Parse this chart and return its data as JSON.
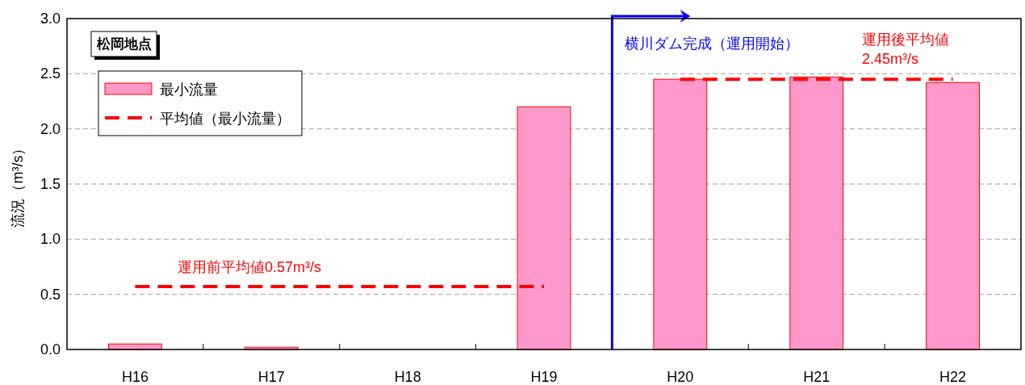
{
  "chart_data": {
    "type": "bar",
    "categories": [
      "H16",
      "H17",
      "H18",
      "H19",
      "H20",
      "H21",
      "H22"
    ],
    "series": [
      {
        "name": "最小流量",
        "color": "#ff99cc",
        "values": [
          0.05,
          0.02,
          0,
          2.2,
          2.45,
          2.47,
          2.42
        ]
      },
      {
        "name": "平均値（最小流量）",
        "type": "line",
        "color": "#ff0000",
        "values": [
          0.57,
          0.57,
          0.57,
          0.57,
          null,
          null,
          null
        ]
      },
      {
        "type": "line",
        "color": "#ff0000",
        "values": [
          null,
          null,
          null,
          null,
          2.45,
          2.45,
          2.45
        ]
      }
    ],
    "ylabel": "流況（m³/s）",
    "ylim": [
      0,
      3.0
    ],
    "yticks": [
      {
        "value": 0,
        "label": "0.0"
      },
      {
        "value": 0.5,
        "label": "0.5"
      },
      {
        "value": 1.0,
        "label": "1.0"
      },
      {
        "value": 1.5,
        "label": "1.5"
      },
      {
        "value": 2.0,
        "label": "2.0"
      },
      {
        "value": 2.5,
        "label": "2.5"
      },
      {
        "value": 3.0,
        "label": "3.0"
      }
    ],
    "annotations": [
      "松岡地点",
      "横川ダム完成（運用開始）",
      "運用前平均値0.57m³/s",
      "運用後平均値\n2.45m³/s"
    ],
    "grid": "y",
    "legend": "top left",
    "line_style": "dashed"
  }
}
